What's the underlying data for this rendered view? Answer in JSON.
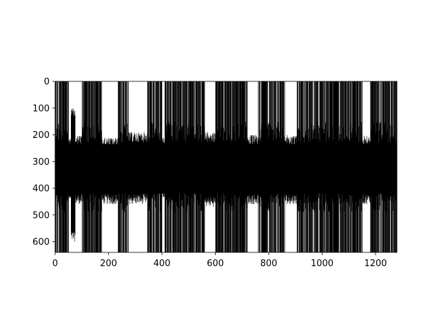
{
  "chart_data": {
    "type": "line",
    "title": "",
    "xlabel": "",
    "ylabel": "",
    "xlim": [
      0,
      1280
    ],
    "ylim": [
      640,
      0
    ],
    "y_axis_inverted": true,
    "grid": false,
    "legend": "none",
    "x_ticks": [
      0,
      200,
      400,
      600,
      800,
      1000,
      1200
    ],
    "y_ticks": [
      0,
      100,
      200,
      300,
      400,
      500,
      600
    ],
    "series": [
      {
        "color": "#000000",
        "description_of_values": "dense vertical trace per x column (x = 0..1280), each spanning between a lower and upper y value",
        "core_band": [
          235,
          420
        ],
        "segments": [
          {
            "x": [
              0,
              10
            ],
            "y_range": [
              0,
              640
            ]
          },
          {
            "x": [
              12,
              50
            ],
            "y_range": [
              0,
              640
            ]
          },
          {
            "x": [
              60,
              75
            ],
            "y_range": [
              100,
              600
            ]
          },
          {
            "x": [
              75,
              100
            ],
            "y_range": [
              200,
              460
            ]
          },
          {
            "x": [
              100,
              120
            ],
            "y_range": [
              0,
              640
            ]
          },
          {
            "x": [
              120,
              175
            ],
            "y_range": [
              0,
              640
            ]
          },
          {
            "x": [
              175,
              235
            ],
            "y_range": [
              210,
              460
            ]
          },
          {
            "x": [
              235,
              275
            ],
            "y_range": [
              0,
              640
            ]
          },
          {
            "x": [
              275,
              345
            ],
            "y_range": [
              190,
              460
            ]
          },
          {
            "x": [
              345,
              360
            ],
            "y_range": [
              0,
              640
            ]
          },
          {
            "x": [
              360,
              400
            ],
            "y_range": [
              0,
              640
            ]
          },
          {
            "x": [
              400,
              410
            ],
            "y_range": [
              210,
              440
            ]
          },
          {
            "x": [
              410,
              475
            ],
            "y_range": [
              0,
              640
            ]
          },
          {
            "x": [
              475,
              560
            ],
            "y_range": [
              0,
              640
            ]
          },
          {
            "x": [
              560,
              600
            ],
            "y_range": [
              190,
              470
            ]
          },
          {
            "x": [
              600,
              680
            ],
            "y_range": [
              0,
              640
            ]
          },
          {
            "x": [
              680,
              720
            ],
            "y_range": [
              0,
              640
            ]
          },
          {
            "x": [
              720,
              760
            ],
            "y_range": [
              200,
              460
            ]
          },
          {
            "x": [
              760,
              790
            ],
            "y_range": [
              0,
              640
            ]
          },
          {
            "x": [
              790,
              825
            ],
            "y_range": [
              0,
              640
            ]
          },
          {
            "x": [
              825,
              860
            ],
            "y_range": [
              0,
              640
            ]
          },
          {
            "x": [
              860,
              905
            ],
            "y_range": [
              200,
              460
            ]
          },
          {
            "x": [
              905,
              985
            ],
            "y_range": [
              0,
              640
            ]
          },
          {
            "x": [
              985,
              1070
            ],
            "y_range": [
              0,
              640
            ]
          },
          {
            "x": [
              1070,
              1110
            ],
            "y_range": [
              0,
              640
            ]
          },
          {
            "x": [
              1110,
              1150
            ],
            "y_range": [
              0,
              640
            ]
          },
          {
            "x": [
              1150,
              1180
            ],
            "y_range": [
              200,
              460
            ]
          },
          {
            "x": [
              1180,
              1280
            ],
            "y_range": [
              0,
              640
            ]
          }
        ]
      }
    ]
  }
}
